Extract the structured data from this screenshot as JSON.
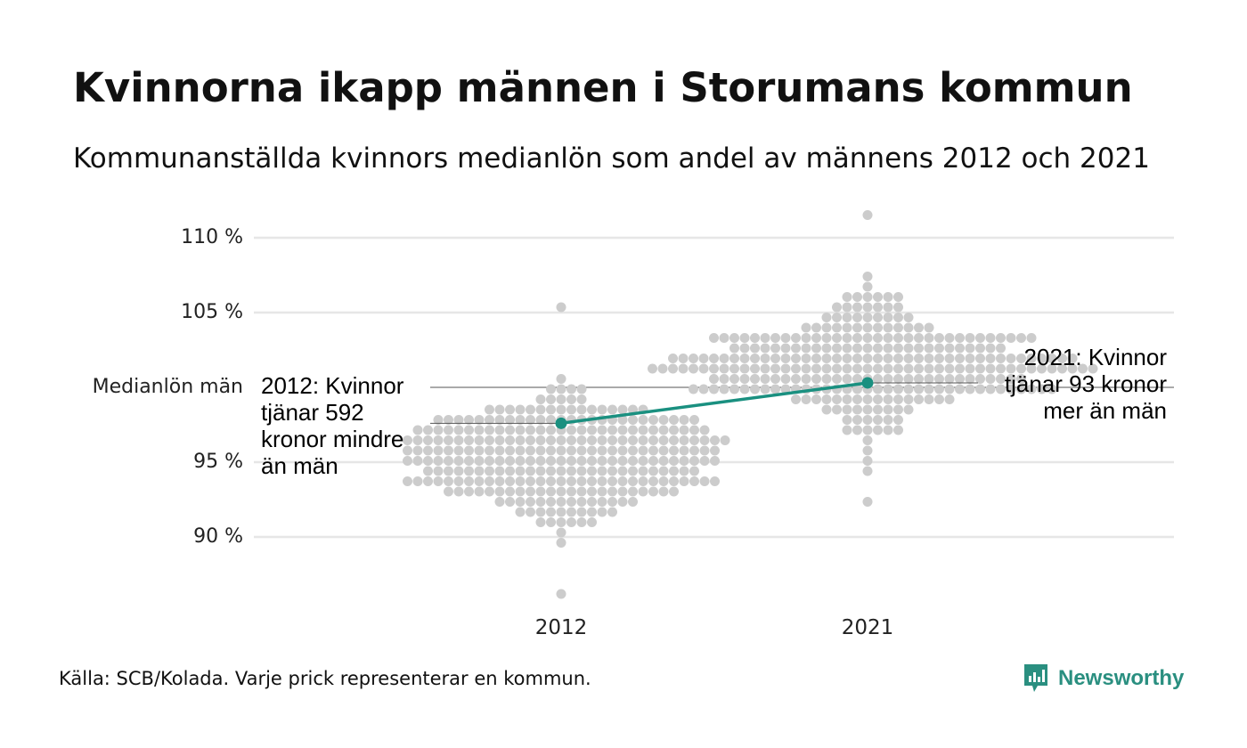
{
  "title": "Kvinnorna ikapp männen i Storumans kommun",
  "subtitle": "Kommunanställda kvinnors medianlön som andel av männens 2012 och 2021",
  "source": "Källa: SCB/Kolada. Varje prick representerar en kommun.",
  "brand": {
    "name": "Newsworthy",
    "color": "#2a8f80",
    "icon": "newsworthy-chart-icon"
  },
  "reference_label": "Medianlön män",
  "annotations": {
    "left": [
      "2012: Kvinnor",
      "tjänar 592",
      "kronor mindre",
      "än män"
    ],
    "right": [
      "2021: Kvinnor",
      "tjänar 93 kronor",
      "mer än män"
    ]
  },
  "chart_data": {
    "type": "scatter",
    "title": "Kvinnorna ikapp männen i Storumans kommun",
    "subtitle": "Kommunanställda kvinnors medianlön som andel av männens 2012 och 2021",
    "categories": [
      "2012",
      "2021"
    ],
    "y_ticks": [
      {
        "value": 90,
        "label": "90 %"
      },
      {
        "value": 95,
        "label": "95 %"
      },
      {
        "value": 100,
        "label": "Medianlön män"
      },
      {
        "value": 105,
        "label": "105 %"
      },
      {
        "value": 110,
        "label": "110 %"
      }
    ],
    "ylim": [
      86,
      111.5
    ],
    "grid": true,
    "background_distribution": {
      "description_source": "Varje prick representerar en kommun.",
      "color": "#cccccc",
      "2012": {
        "center": 95.3,
        "spread": 2.2,
        "min": 86.5,
        "max": 105.2,
        "count": 290
      },
      "2021": {
        "center": 101.6,
        "spread": 2.0,
        "min": 92.6,
        "max": 111.3,
        "count": 290
      }
    },
    "highlight_series": {
      "color": "#1a9080",
      "points": [
        {
          "x": "2012",
          "y": 97.6
        },
        {
          "x": "2021",
          "y": 100.3
        }
      ]
    }
  }
}
